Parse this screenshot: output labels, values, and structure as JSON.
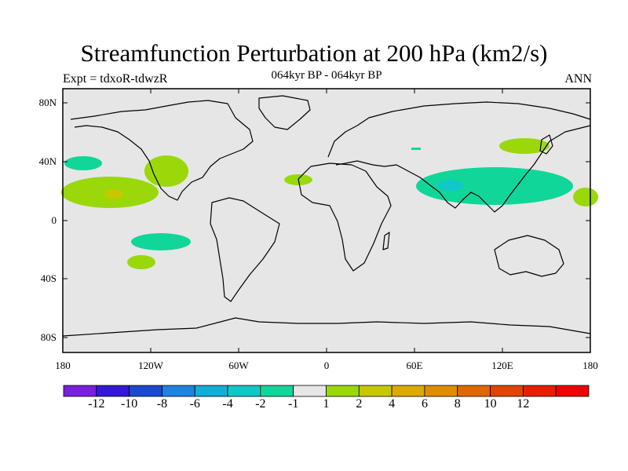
{
  "title": "Streamfunction Perturbation at 200 hPa (km2/s)",
  "left_label": "Expt = tdxoR-tdwzR",
  "center_label": "064kyr BP - 064kyr BP",
  "right_label": "ANN",
  "y_ticks": [
    "80N",
    "40N",
    "0",
    "40S",
    "80S"
  ],
  "x_ticks": [
    "180",
    "120W",
    "60W",
    "0",
    "60E",
    "120E",
    "180"
  ],
  "colorbar": {
    "colors": [
      "#7a1fe0",
      "#3418d8",
      "#1a48d0",
      "#1e82e0",
      "#12aed8",
      "#10c8c8",
      "#10d69a",
      "#e6e6e6",
      "#9ad80a",
      "#c8c800",
      "#dcaa00",
      "#e08c00",
      "#e06800",
      "#e04400",
      "#e81e00",
      "#f00000"
    ],
    "labels": [
      "-12",
      "-10",
      "-8",
      "-6",
      "-4",
      "-2",
      "-1",
      "1",
      "2",
      "4",
      "6",
      "8",
      "10",
      "12"
    ]
  },
  "map": {
    "background": "#e6e6e6",
    "positive_color": "#9ad80a",
    "positive_strong_color": "#c8c800",
    "negative_color": "#10d69a",
    "negative_strong_color": "#10c8c8"
  }
}
